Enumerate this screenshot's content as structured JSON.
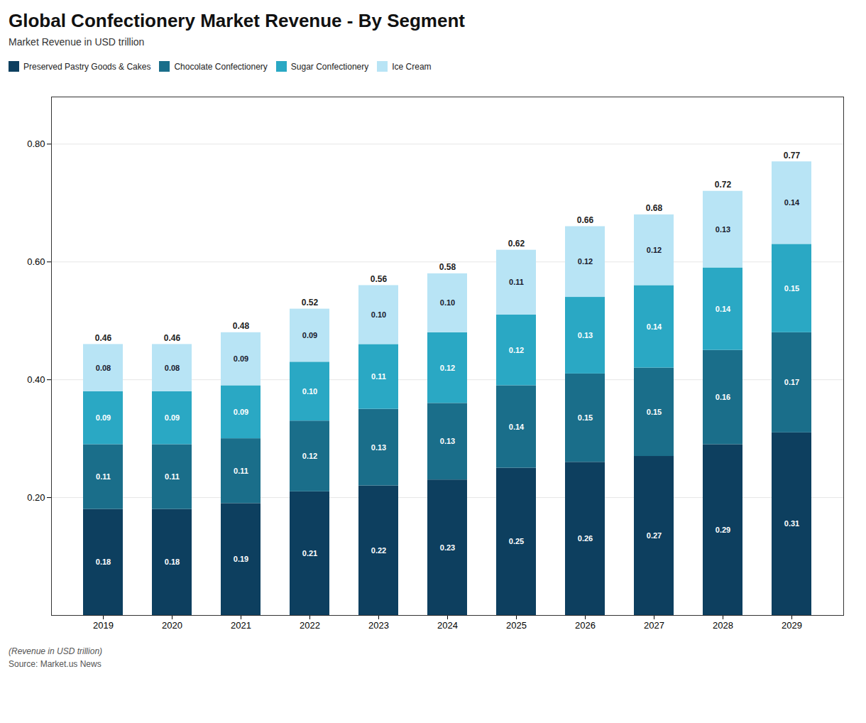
{
  "chart_data": {
    "type": "bar",
    "stacked": true,
    "title": "Global Confectionery Market Revenue - By Segment",
    "subtitle": "Market Revenue in USD trillion",
    "footnote": "(Revenue in USD trillion)",
    "source": "Source: Market.us News",
    "categories": [
      "2019",
      "2020",
      "2021",
      "2022",
      "2023",
      "2024",
      "2025",
      "2026",
      "2027",
      "2028",
      "2029"
    ],
    "series": [
      {
        "name": "Preserved Pastry Goods & Cakes",
        "color": "#0d3f5f",
        "values": [
          0.18,
          0.18,
          0.19,
          0.21,
          0.22,
          0.23,
          0.25,
          0.26,
          0.27,
          0.29,
          0.31
        ],
        "value_labels": [
          "0.18",
          "0.18",
          "0.19",
          "0.21",
          "0.22",
          "0.23",
          "0.25",
          "0.26",
          "0.27",
          "0.29",
          "0.31"
        ]
      },
      {
        "name": "Chocolate Confectionery",
        "color": "#1a6e8a",
        "values": [
          0.11,
          0.11,
          0.11,
          0.12,
          0.13,
          0.13,
          0.14,
          0.15,
          0.15,
          0.16,
          0.17
        ],
        "value_labels": [
          "0.11",
          "0.11",
          "0.11",
          "0.12",
          "0.13",
          "0.13",
          "0.14",
          "0.15",
          "0.15",
          "0.16",
          "0.17"
        ]
      },
      {
        "name": "Sugar Confectionery",
        "color": "#2aa8c4",
        "values": [
          0.09,
          0.09,
          0.09,
          0.1,
          0.11,
          0.12,
          0.12,
          0.13,
          0.14,
          0.14,
          0.15
        ],
        "value_labels": [
          "0.09",
          "0.09",
          "0.09",
          "0.10",
          "0.11",
          "0.12",
          "0.12",
          "0.13",
          "0.14",
          "0.14",
          "0.15"
        ]
      },
      {
        "name": "Ice Cream",
        "color": "#b8e4f5",
        "values": [
          0.08,
          0.08,
          0.09,
          0.09,
          0.1,
          0.1,
          0.11,
          0.12,
          0.12,
          0.13,
          0.14
        ],
        "value_labels": [
          "0.08",
          "0.08",
          "0.09",
          "0.09",
          "0.10",
          "0.10",
          "0.11",
          "0.12",
          "0.12",
          "0.13",
          "0.14"
        ]
      }
    ],
    "totals": [
      0.46,
      0.46,
      0.48,
      0.52,
      0.56,
      0.58,
      0.62,
      0.66,
      0.68,
      0.72,
      0.77
    ],
    "ylim": [
      0,
      0.88
    ],
    "yticks": [
      {
        "value": 0.2,
        "label": "0.20"
      },
      {
        "value": 0.4,
        "label": "0.40"
      },
      {
        "value": 0.6,
        "label": "0.60"
      },
      {
        "value": 0.8,
        "label": "0.80"
      }
    ],
    "grid": true,
    "legend": "top",
    "data_labels": true
  }
}
